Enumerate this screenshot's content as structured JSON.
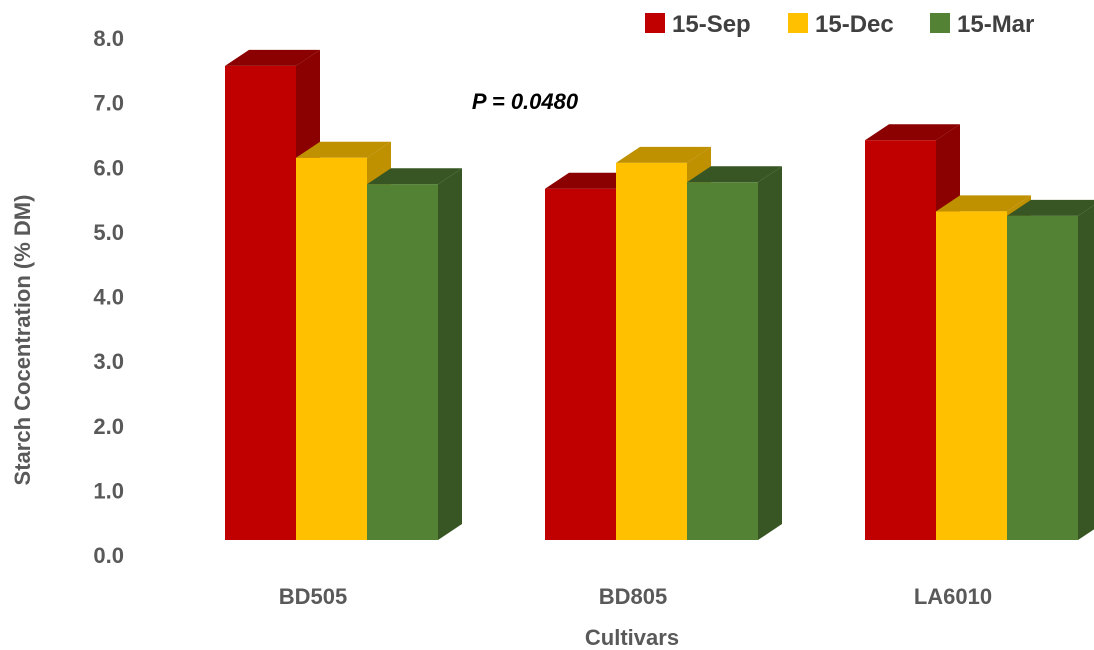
{
  "chart_data": {
    "type": "bar",
    "ylabel": "Starch Cocentration (% DM)",
    "xlabel": "Cultivars",
    "ylim": [
      0,
      8
    ],
    "yticks": [
      "0.0",
      "1.0",
      "2.0",
      "3.0",
      "4.0",
      "5.0",
      "6.0",
      "7.0",
      "8.0"
    ],
    "categories": [
      "BD505",
      "BD805",
      "LA6010"
    ],
    "series": [
      {
        "name": "15-Sep",
        "values": [
          7.8,
          5.9,
          6.65
        ],
        "color": "#C00000",
        "dark": "#8B0000"
      },
      {
        "name": "15-Dec",
        "values": [
          6.38,
          6.3,
          5.55
        ],
        "color": "#FFC000",
        "dark": "#BF9000"
      },
      {
        "name": "15-Mar",
        "values": [
          5.97,
          6.0,
          5.48
        ],
        "color": "#548235",
        "dark": "#375623"
      }
    ],
    "annotation": "P = 0.0480",
    "legend_position": "top-right",
    "grid": false
  }
}
